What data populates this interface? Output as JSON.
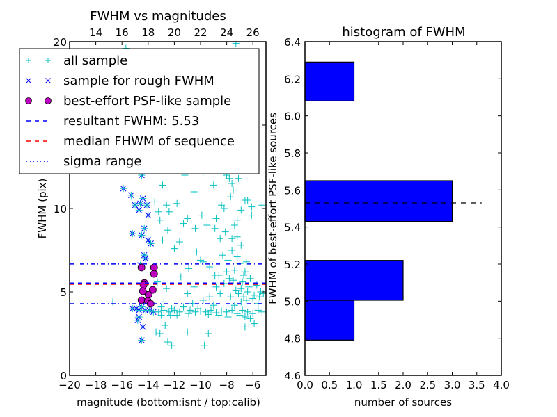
{
  "chart_data": [
    {
      "type": "scatter",
      "title": "FWHM vs magnitudes",
      "xlabel": "magnitude (bottom:isnt / top:calib)",
      "ylabel": "FWHM (pix)",
      "xlim": [
        -20,
        -5
      ],
      "ylim": [
        0,
        20
      ],
      "xticks": [
        -20,
        -18,
        -16,
        -14,
        -12,
        -10,
        -8,
        -6
      ],
      "xtick_labels": [
        "−20",
        "−18",
        "−16",
        "−14",
        "−12",
        "−10",
        "−8",
        "−6"
      ],
      "yticks": [
        0,
        5,
        10,
        15,
        20
      ],
      "ytick_labels": [
        "0",
        "5",
        "10",
        "15",
        "20"
      ],
      "top_axis": {
        "offset": 32,
        "ticks": [
          14,
          16,
          18,
          20,
          22,
          24,
          26
        ],
        "tick_labels": [
          "14",
          "16",
          "18",
          "20",
          "22",
          "24",
          "26"
        ]
      },
      "grid": false,
      "legend": {
        "placement": "upper-left",
        "entries": [
          {
            "label": "all sample",
            "marker": "+",
            "color": "#00bfbf"
          },
          {
            "label": "sample for rough FWHM",
            "marker": "x",
            "color": "#0000ff"
          },
          {
            "label": "best-effort PSF-like sample",
            "marker": "o",
            "color": "#bf00bf"
          },
          {
            "label": "resultant FWHM: 5.53",
            "line": "dashed",
            "color": "#0000ff"
          },
          {
            "label": "median FHWM of sequence",
            "line": "dashed",
            "color": "#ff0000"
          },
          {
            "label": "sigma range",
            "line": "dashdot",
            "color": "#0000ff"
          }
        ]
      },
      "hlines": [
        {
          "name": "sigma-upper",
          "y": 6.67,
          "style": "dashdot",
          "color": "#0000ff"
        },
        {
          "name": "resultant-fwhm",
          "y": 5.53,
          "style": "dashed",
          "color": "#0000ff"
        },
        {
          "name": "median-fwhm",
          "y": 5.46,
          "style": "dashed",
          "color": "#ff0000"
        },
        {
          "name": "sigma-lower",
          "y": 4.29,
          "style": "dashdot",
          "color": "#0000ff"
        }
      ],
      "series": [
        {
          "name": "all sample",
          "marker": "+",
          "color": "#00bfbf",
          "points": [
            [
              -16.7,
              4.4
            ],
            [
              -16.2,
              19.3
            ],
            [
              -13.3,
              5.6
            ],
            [
              -12.8,
              4.4
            ],
            [
              -13.0,
              3.6
            ],
            [
              -12.6,
              5.2
            ],
            [
              -11.5,
              5.9
            ],
            [
              -11.0,
              4.9
            ],
            [
              -10.5,
              5.3
            ],
            [
              -9.3,
              4.7
            ],
            [
              -10.9,
              6.4
            ],
            [
              -10.3,
              7.4
            ],
            [
              -9.8,
              6.8
            ],
            [
              -8.9,
              6.0
            ],
            [
              -12.0,
              7.6
            ],
            [
              -11.6,
              8.0
            ],
            [
              -12.5,
              8.7
            ],
            [
              -13.1,
              9.3
            ],
            [
              -12.4,
              9.8
            ],
            [
              -11.3,
              9.1
            ],
            [
              -10.4,
              8.8
            ],
            [
              -9.5,
              9.0
            ],
            [
              -8.9,
              8.8
            ],
            [
              -8.5,
              8.2
            ],
            [
              -7.4,
              9.0
            ],
            [
              -7.2,
              9.3
            ],
            [
              -8.2,
              10.0
            ],
            [
              -7.7,
              10.7
            ],
            [
              -7.5,
              11.1
            ],
            [
              -6.1,
              10.1
            ],
            [
              -7.6,
              11.5
            ],
            [
              -8.0,
              12.0
            ],
            [
              -7.8,
              11.8
            ],
            [
              -7.1,
              11.8
            ],
            [
              -10.8,
              12.7
            ],
            [
              -10.2,
              12.5
            ],
            [
              -6.4,
              10.5
            ],
            [
              -5.3,
              10.2
            ],
            [
              -8.9,
              12.5
            ],
            [
              -12.6,
              10.2
            ],
            [
              -13.5,
              10.4
            ],
            [
              -13.2,
              9.8
            ],
            [
              -11.8,
              10.3
            ],
            [
              -12.9,
              8.1
            ],
            [
              -10.5,
              11.0
            ],
            [
              -7.0,
              6.7
            ],
            [
              -6.6,
              6.2
            ],
            [
              -6.2,
              5.8
            ],
            [
              -5.7,
              5.4
            ],
            [
              -5.4,
              5.0
            ],
            [
              -7.4,
              6.3
            ],
            [
              -7.9,
              6.9
            ],
            [
              -8.3,
              7.2
            ],
            [
              -7.6,
              7.5
            ],
            [
              -6.9,
              7.8
            ],
            [
              -8.1,
              8.6
            ],
            [
              -7.2,
              8.3
            ],
            [
              -7.8,
              5.8
            ],
            [
              -8.2,
              5.5
            ],
            [
              -6.8,
              5.6
            ],
            [
              -6.4,
              5.0
            ],
            [
              -6.0,
              4.6
            ],
            [
              -5.6,
              4.3
            ],
            [
              -5.2,
              4.9
            ],
            [
              -7.3,
              5.1
            ],
            [
              -7.7,
              4.7
            ],
            [
              -8.5,
              4.9
            ],
            [
              -8.8,
              5.3
            ],
            [
              -9.0,
              4.2
            ],
            [
              -9.8,
              4.5
            ],
            [
              -10.6,
              4.3
            ],
            [
              -11.3,
              4.1
            ],
            [
              -12.2,
              4.0
            ],
            [
              -13.2,
              3.8
            ],
            [
              -12.8,
              3.9
            ],
            [
              -12.4,
              3.8
            ],
            [
              -12.0,
              3.9
            ],
            [
              -11.6,
              3.8
            ],
            [
              -11.2,
              3.85
            ],
            [
              -10.8,
              3.9
            ],
            [
              -10.4,
              3.8
            ],
            [
              -10.0,
              3.85
            ],
            [
              -9.6,
              3.8
            ],
            [
              -9.2,
              3.9
            ],
            [
              -8.8,
              3.75
            ],
            [
              -8.4,
              3.85
            ],
            [
              -8.0,
              3.8
            ],
            [
              -7.6,
              3.9
            ],
            [
              -7.2,
              3.7
            ],
            [
              -6.8,
              3.9
            ],
            [
              -6.4,
              3.8
            ],
            [
              -6.0,
              3.7
            ],
            [
              -5.6,
              3.9
            ],
            [
              -5.3,
              3.8
            ],
            [
              -13.0,
              4.1
            ],
            [
              -12.3,
              3.6
            ],
            [
              -11.8,
              3.6
            ],
            [
              -10.9,
              3.7
            ],
            [
              -10.2,
              4.0
            ],
            [
              -9.4,
              3.65
            ],
            [
              -8.6,
              3.6
            ],
            [
              -7.9,
              3.5
            ],
            [
              -7.0,
              3.6
            ],
            [
              -6.6,
              3.5
            ],
            [
              -6.2,
              3.4
            ],
            [
              -7.4,
              4.2
            ],
            [
              -6.9,
              4.4
            ],
            [
              -6.5,
              4.5
            ],
            [
              -5.9,
              4.8
            ],
            [
              -5.5,
              4.7
            ],
            [
              -12.7,
              3.0
            ],
            [
              -13.1,
              2.5
            ],
            [
              -12.5,
              2.0
            ],
            [
              -11.0,
              2.6
            ],
            [
              -9.7,
              1.8
            ],
            [
              -12.2,
              1.8
            ],
            [
              -9.4,
              2.5
            ],
            [
              -6.6,
              2.9
            ],
            [
              -5.9,
              3.1
            ],
            [
              -13.4,
              2.6
            ],
            [
              -6.9,
              5.2
            ],
            [
              -7.1,
              4.9
            ],
            [
              -6.7,
              4.7
            ],
            [
              -6.3,
              5.3
            ],
            [
              -6.7,
              6.0
            ],
            [
              -7.5,
              5.7
            ],
            [
              -8.0,
              6.2
            ],
            [
              -8.6,
              6.0
            ],
            [
              -9.3,
              6.5
            ],
            [
              -10.0,
              6.9
            ],
            [
              -8.4,
              13.5
            ],
            [
              -9.0,
              11.4
            ],
            [
              -11.2,
              12.0
            ],
            [
              -9.8,
              12.2
            ],
            [
              -6.6,
              10.5
            ],
            [
              -7.9,
              13.0
            ],
            [
              -7.3,
              12.6
            ],
            [
              -12.9,
              11.4
            ],
            [
              -15.7,
              19.6
            ],
            [
              -7.3,
              19.9
            ],
            [
              -12.6,
              12.4
            ],
            [
              -8.4,
              10.2
            ],
            [
              -8.8,
              9.4
            ],
            [
              -9.9,
              9.6
            ],
            [
              -11.0,
              9.4
            ],
            [
              -6.1,
              9.6
            ],
            [
              -6.9,
              9.9
            ],
            [
              -7.6,
              8.2
            ],
            [
              -7.2,
              7.1
            ],
            [
              -6.5,
              6.8
            ]
          ]
        },
        {
          "name": "sample for rough FWHM",
          "marker": "x",
          "color": "#0000ff",
          "points": [
            [
              -15.9,
              11.2
            ],
            [
              -15.3,
              10.8
            ],
            [
              -14.6,
              10.3
            ],
            [
              -14.4,
              10.6
            ],
            [
              -15.0,
              10.2
            ],
            [
              -14.7,
              9.9
            ],
            [
              -14.1,
              10.2
            ],
            [
              -14.0,
              9.6
            ],
            [
              -14.3,
              8.8
            ],
            [
              -15.2,
              8.5
            ],
            [
              -14.5,
              8.4
            ],
            [
              -14.0,
              8.1
            ],
            [
              -13.8,
              7.9
            ],
            [
              -14.3,
              7.2
            ],
            [
              -14.2,
              7.0
            ],
            [
              -14.6,
              6.6
            ],
            [
              -14.5,
              12.0
            ],
            [
              -15.2,
              4.0
            ],
            [
              -14.9,
              4.0
            ],
            [
              -14.7,
              3.9
            ],
            [
              -14.5,
              4.1
            ],
            [
              -14.2,
              3.9
            ],
            [
              -13.9,
              3.9
            ],
            [
              -13.6,
              3.8
            ],
            [
              -14.8,
              3.3
            ],
            [
              -14.7,
              3.5
            ],
            [
              -14.4,
              2.9
            ],
            [
              -14.5,
              2.1
            ]
          ]
        },
        {
          "name": "best-effort PSF-like sample",
          "marker": "o",
          "color": "#bf00bf",
          "points": [
            [
              -14.51,
              6.46
            ],
            [
              -13.55,
              6.46
            ],
            [
              -13.55,
              6.08
            ],
            [
              -14.29,
              5.54
            ],
            [
              -14.35,
              5.42
            ],
            [
              -14.4,
              5.04
            ],
            [
              -13.65,
              5.12
            ],
            [
              -13.97,
              4.83
            ],
            [
              -14.51,
              4.5
            ],
            [
              -14.03,
              4.46
            ],
            [
              -13.81,
              4.29
            ]
          ]
        }
      ]
    },
    {
      "type": "bar",
      "orientation": "horizontal",
      "title": "histogram of FWHM",
      "xlabel": "number of sources",
      "ylabel": "FWHM of best-effort PSF-like sources",
      "xlim": [
        0,
        4.0
      ],
      "ylim": [
        4.6,
        6.4
      ],
      "xticks": [
        0.0,
        0.5,
        1.0,
        1.5,
        2.0,
        2.5,
        3.0,
        3.5,
        4.0
      ],
      "xtick_labels": [
        "0.0",
        "0.5",
        "1.0",
        "1.5",
        "2.0",
        "2.5",
        "3.0",
        "3.5",
        "4.0"
      ],
      "yticks": [
        4.6,
        4.8,
        5.0,
        5.2,
        5.4,
        5.6,
        5.8,
        6.0,
        6.2,
        6.4
      ],
      "ytick_labels": [
        "4.6",
        "4.8",
        "5.0",
        "5.2",
        "5.4",
        "5.6",
        "5.8",
        "6.0",
        "6.2",
        "6.4"
      ],
      "grid": false,
      "bar_color": "#0000ff",
      "bins": [
        {
          "low": 4.79,
          "high": 5.005,
          "count": 1
        },
        {
          "low": 5.005,
          "high": 5.22,
          "count": 2
        },
        {
          "low": 5.22,
          "high": 5.43,
          "count": 0
        },
        {
          "low": 5.43,
          "high": 5.65,
          "count": 3
        },
        {
          "low": 5.65,
          "high": 5.86,
          "count": 0
        },
        {
          "low": 5.86,
          "high": 6.08,
          "count": 0
        },
        {
          "low": 6.08,
          "high": 6.29,
          "count": 1
        }
      ],
      "reference_line": {
        "y": 5.53,
        "x_range": [
          0,
          3.6
        ],
        "style": "dashed",
        "color": "#000000"
      }
    }
  ]
}
